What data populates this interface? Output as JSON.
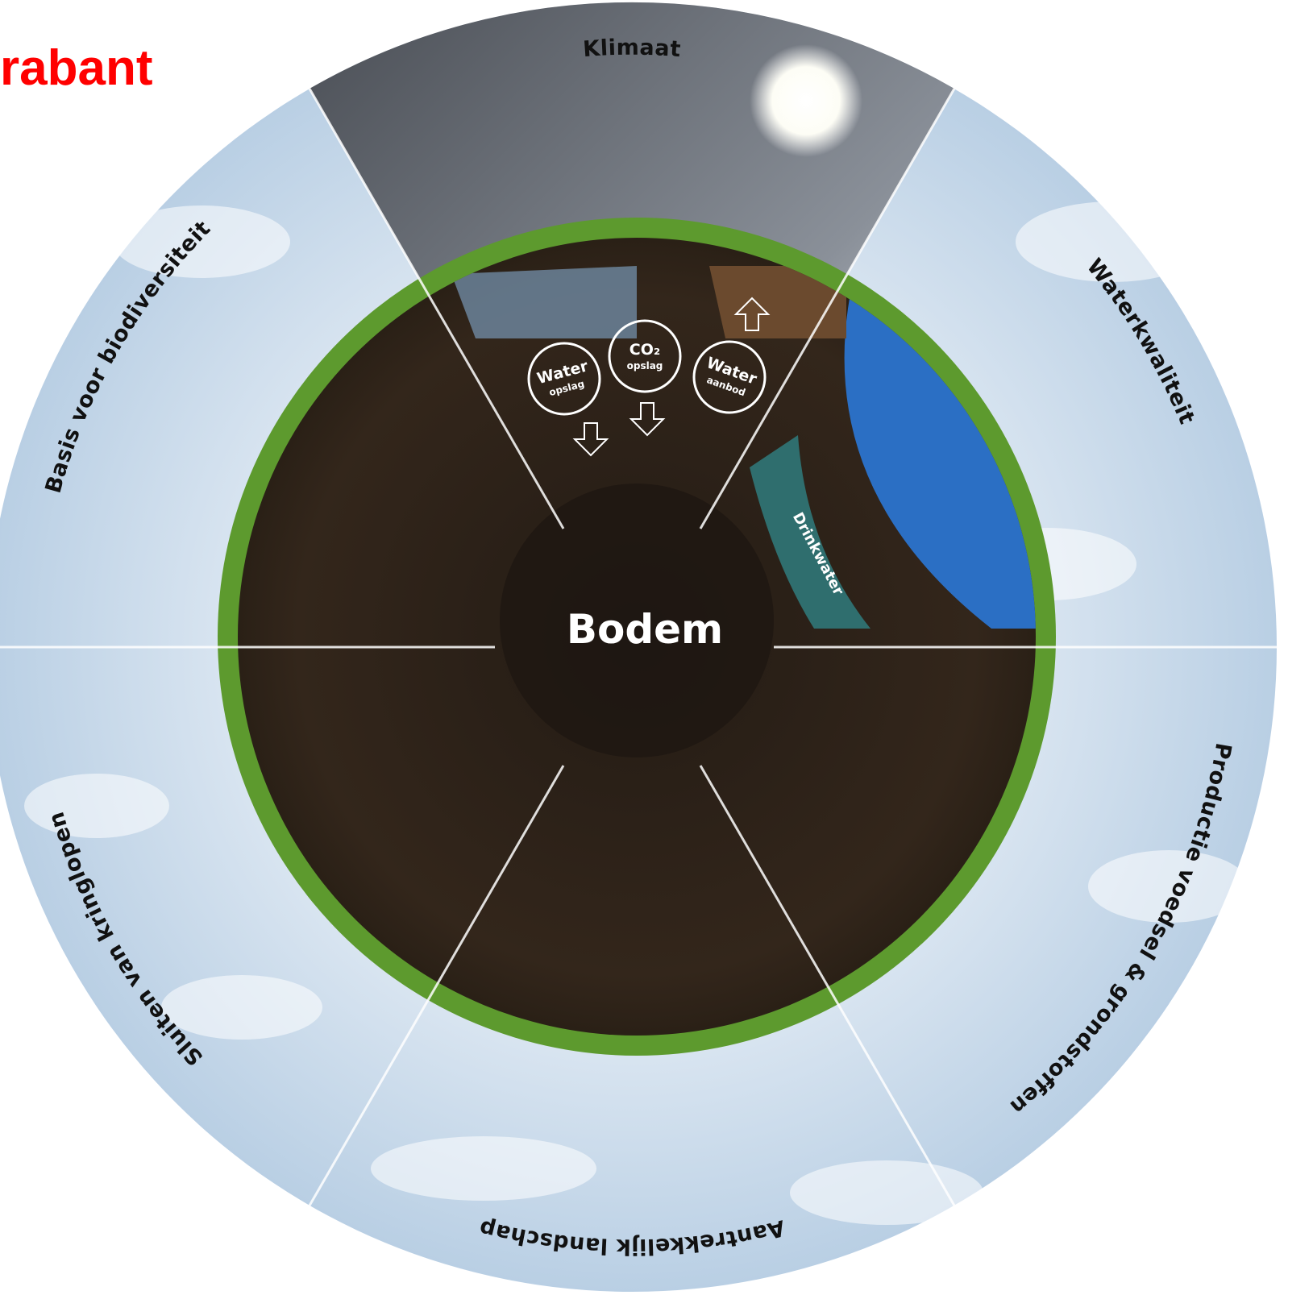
{
  "header": {
    "title": "rabant"
  },
  "diagram": {
    "center": "Bodem",
    "sectors": [
      "Klimaat",
      "Waterkwaliteit",
      "Productie voedsel & grondstoffen",
      "Aantrekkelijk landschap",
      "Sluiten van kringlopen",
      "Basis voor biodiversiteit"
    ],
    "icons": [
      {
        "title": "Water",
        "subtitle": "opslag"
      },
      {
        "title": "CO₂",
        "subtitle": "opslag"
      },
      {
        "title": "Water",
        "subtitle": "aanbod"
      }
    ],
    "inner_label": "Drinkwater"
  }
}
